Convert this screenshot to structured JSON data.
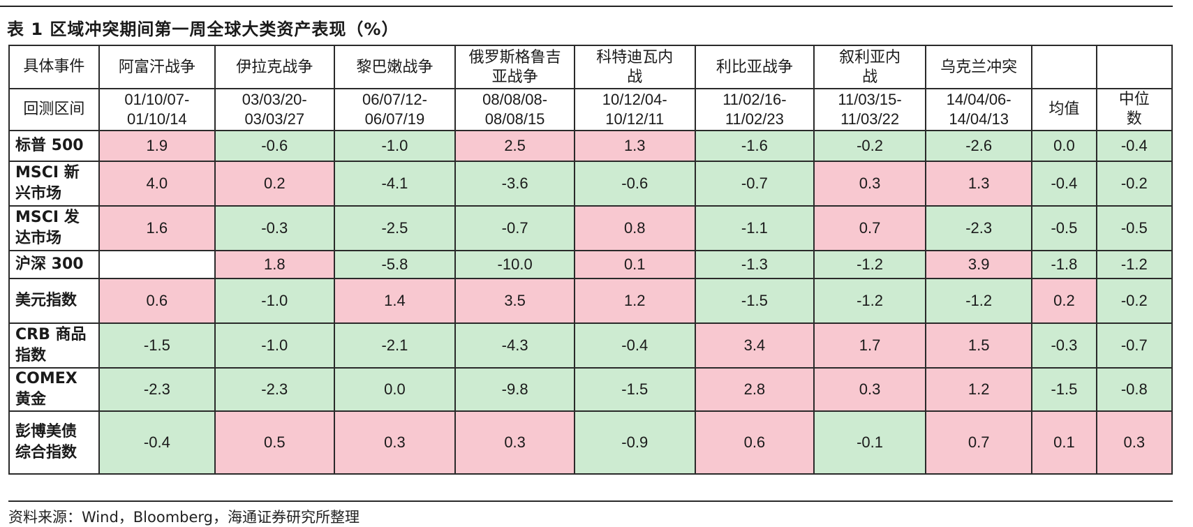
{
  "title": "表 1  区域冲突期间第一周全球大类资产表现（%）",
  "header": {
    "event_label": "具体事件",
    "period_label": "回测区间",
    "events": [
      "阿富汗战争",
      "伊拉克战争",
      "黎巴嫩战争",
      "俄罗斯格鲁吉亚战争",
      "科特迪瓦内战",
      "利比亚战争",
      "叙利亚内战",
      "乌克兰冲突"
    ],
    "periods": [
      "01/10/07-01/10/14",
      "03/03/20-03/03/27",
      "06/07/12-06/07/19",
      "08/08/08-08/08/15",
      "10/12/04-10/12/11",
      "11/02/16-11/02/23",
      "11/03/15-11/03/22",
      "14/04/06-14/04/13"
    ],
    "mean_label": "均值",
    "median_label": "中位数"
  },
  "rows": [
    {
      "name": "标普 500",
      "values": [
        "1.9",
        "-0.6",
        "-1.0",
        "2.5",
        "1.3",
        "-1.6",
        "-0.2",
        "-2.6",
        "0.0",
        "-0.4"
      ]
    },
    {
      "name": "MSCI 新兴市场",
      "values": [
        "4.0",
        "0.2",
        "-4.1",
        "-3.6",
        "-0.6",
        "-0.7",
        "0.3",
        "1.3",
        "-0.4",
        "-0.2"
      ]
    },
    {
      "name": "MSCI 发达市场",
      "values": [
        "1.6",
        "-0.3",
        "-2.5",
        "-0.7",
        "0.8",
        "-1.1",
        "0.7",
        "-2.3",
        "-0.5",
        "-0.5"
      ]
    },
    {
      "name": "沪深 300",
      "values": [
        "",
        "1.8",
        "-5.8",
        "-10.0",
        "0.1",
        "-1.3",
        "-1.2",
        "3.9",
        "-1.8",
        "-1.2"
      ]
    },
    {
      "name": "美元指数",
      "values": [
        "0.6",
        "-1.0",
        "1.4",
        "3.5",
        "1.2",
        "-1.5",
        "-1.2",
        "-1.2",
        "0.2",
        "-0.2"
      ]
    },
    {
      "name": "CRB 商品指数",
      "values": [
        "-1.5",
        "-1.0",
        "-2.1",
        "-4.3",
        "-0.4",
        "3.4",
        "1.7",
        "1.5",
        "-0.3",
        "-0.7"
      ]
    },
    {
      "name": "COMEX 黄金",
      "values": [
        "-2.3",
        "-2.3",
        "0.0",
        "-9.8",
        "-1.5",
        "2.8",
        "0.3",
        "1.2",
        "-1.5",
        "-0.8"
      ]
    },
    {
      "name": "彭博美债综合指数",
      "values": [
        "-0.4",
        "0.5",
        "0.3",
        "0.3",
        "-0.9",
        "0.6",
        "-0.1",
        "0.7",
        "0.1",
        "0.3"
      ]
    }
  ],
  "source": "资料来源：Wind，Bloomberg，海通证券研究所整理",
  "colors": {
    "positive": "#f8c8d0",
    "negative": "#cdebd1"
  }
}
